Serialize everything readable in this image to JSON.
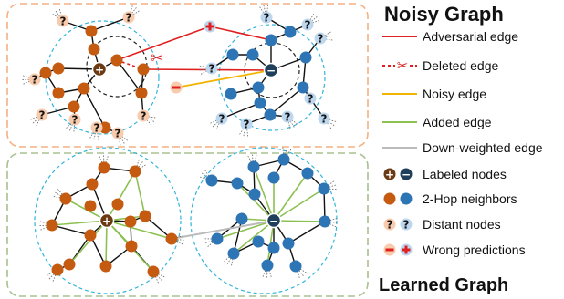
{
  "titles": {
    "noisy": "Noisy Graph",
    "learned": "Learned Graph"
  },
  "legend": [
    {
      "key": "adversarial",
      "label": "Adversarial edge"
    },
    {
      "key": "deleted",
      "label": "Deleted edge"
    },
    {
      "key": "noisy",
      "label": "Noisy edge"
    },
    {
      "key": "added",
      "label": "Added edge"
    },
    {
      "key": "downweighted",
      "label": "Down-weighted edge"
    },
    {
      "key": "labeled",
      "label": "Labeled nodes"
    },
    {
      "key": "twohop",
      "label": "2-Hop neighbors"
    },
    {
      "key": "distant",
      "label": "Distant nodes"
    },
    {
      "key": "wrong",
      "label": "Wrong predictions"
    }
  ],
  "node_glyphs": {
    "plus": "+",
    "minus": "−",
    "question": "?",
    "scissors": "✂"
  },
  "colors": {
    "orange_node": "#C55A11",
    "blue_node": "#2E75B6",
    "orange_light": "#F8CBAD",
    "blue_light": "#BDD7EE",
    "adversarial": "#E02020",
    "noisy": "#F2B400",
    "added": "#8CC152",
    "downweighted": "#BBBBBB",
    "edge": "#111111",
    "top_border": "#F4B183",
    "bottom_border": "#A9C090",
    "circle_dash": "#33B5D9"
  }
}
